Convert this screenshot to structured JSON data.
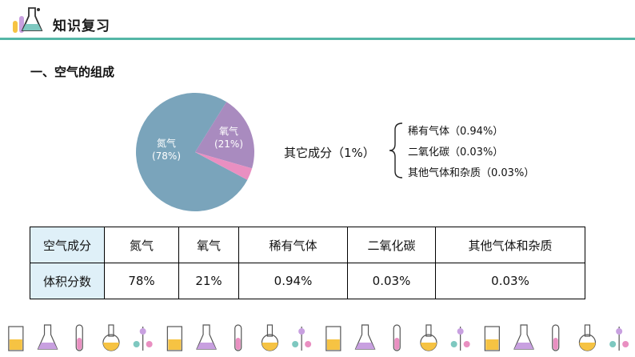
{
  "header": {
    "title": "知识复习",
    "icon": "flask-icon"
  },
  "section": {
    "title": "一、空气的组成"
  },
  "pie": {
    "slices": [
      {
        "name": "氮气",
        "percent": "(78%)",
        "value": 78,
        "color": "#7aa4bb"
      },
      {
        "name": "氧气",
        "percent": "(21%)",
        "value": 21,
        "color": "#a98bbf"
      },
      {
        "name": "其它成分",
        "value": 1,
        "color": "#e98fc1"
      }
    ]
  },
  "callout": {
    "label": "其它成分（1%）"
  },
  "components": [
    "稀有气体（0.94%）",
    "二氧化碳（0.03%）",
    "其他气体和杂质（0.03%）"
  ],
  "table": {
    "header": [
      "空气成分",
      "氮气",
      "氧气",
      "稀有气体",
      "二氧化碳",
      "其他气体和杂质"
    ],
    "row": [
      "体积分数",
      "78%",
      "21%",
      "0.94%",
      "0.03%",
      "0.03%"
    ]
  },
  "footer_icons": [
    "beaker-icon",
    "round-flask-icon",
    "test-tube-icon",
    "round-flask-icon",
    "test-tube-icon",
    "conical-flask-icon",
    "weighing-bottle-icon",
    "test-tube-icon",
    "alcohol-lamp-icon",
    "thermometer-icon",
    "iron-stand-icon",
    "beaker-icon",
    "tripod-icon",
    "microscope-icon",
    "dropper-icon",
    "funnel-icon",
    "molecule-icon",
    "atom-icon",
    "benzene-icon",
    "pen-icon"
  ]
}
